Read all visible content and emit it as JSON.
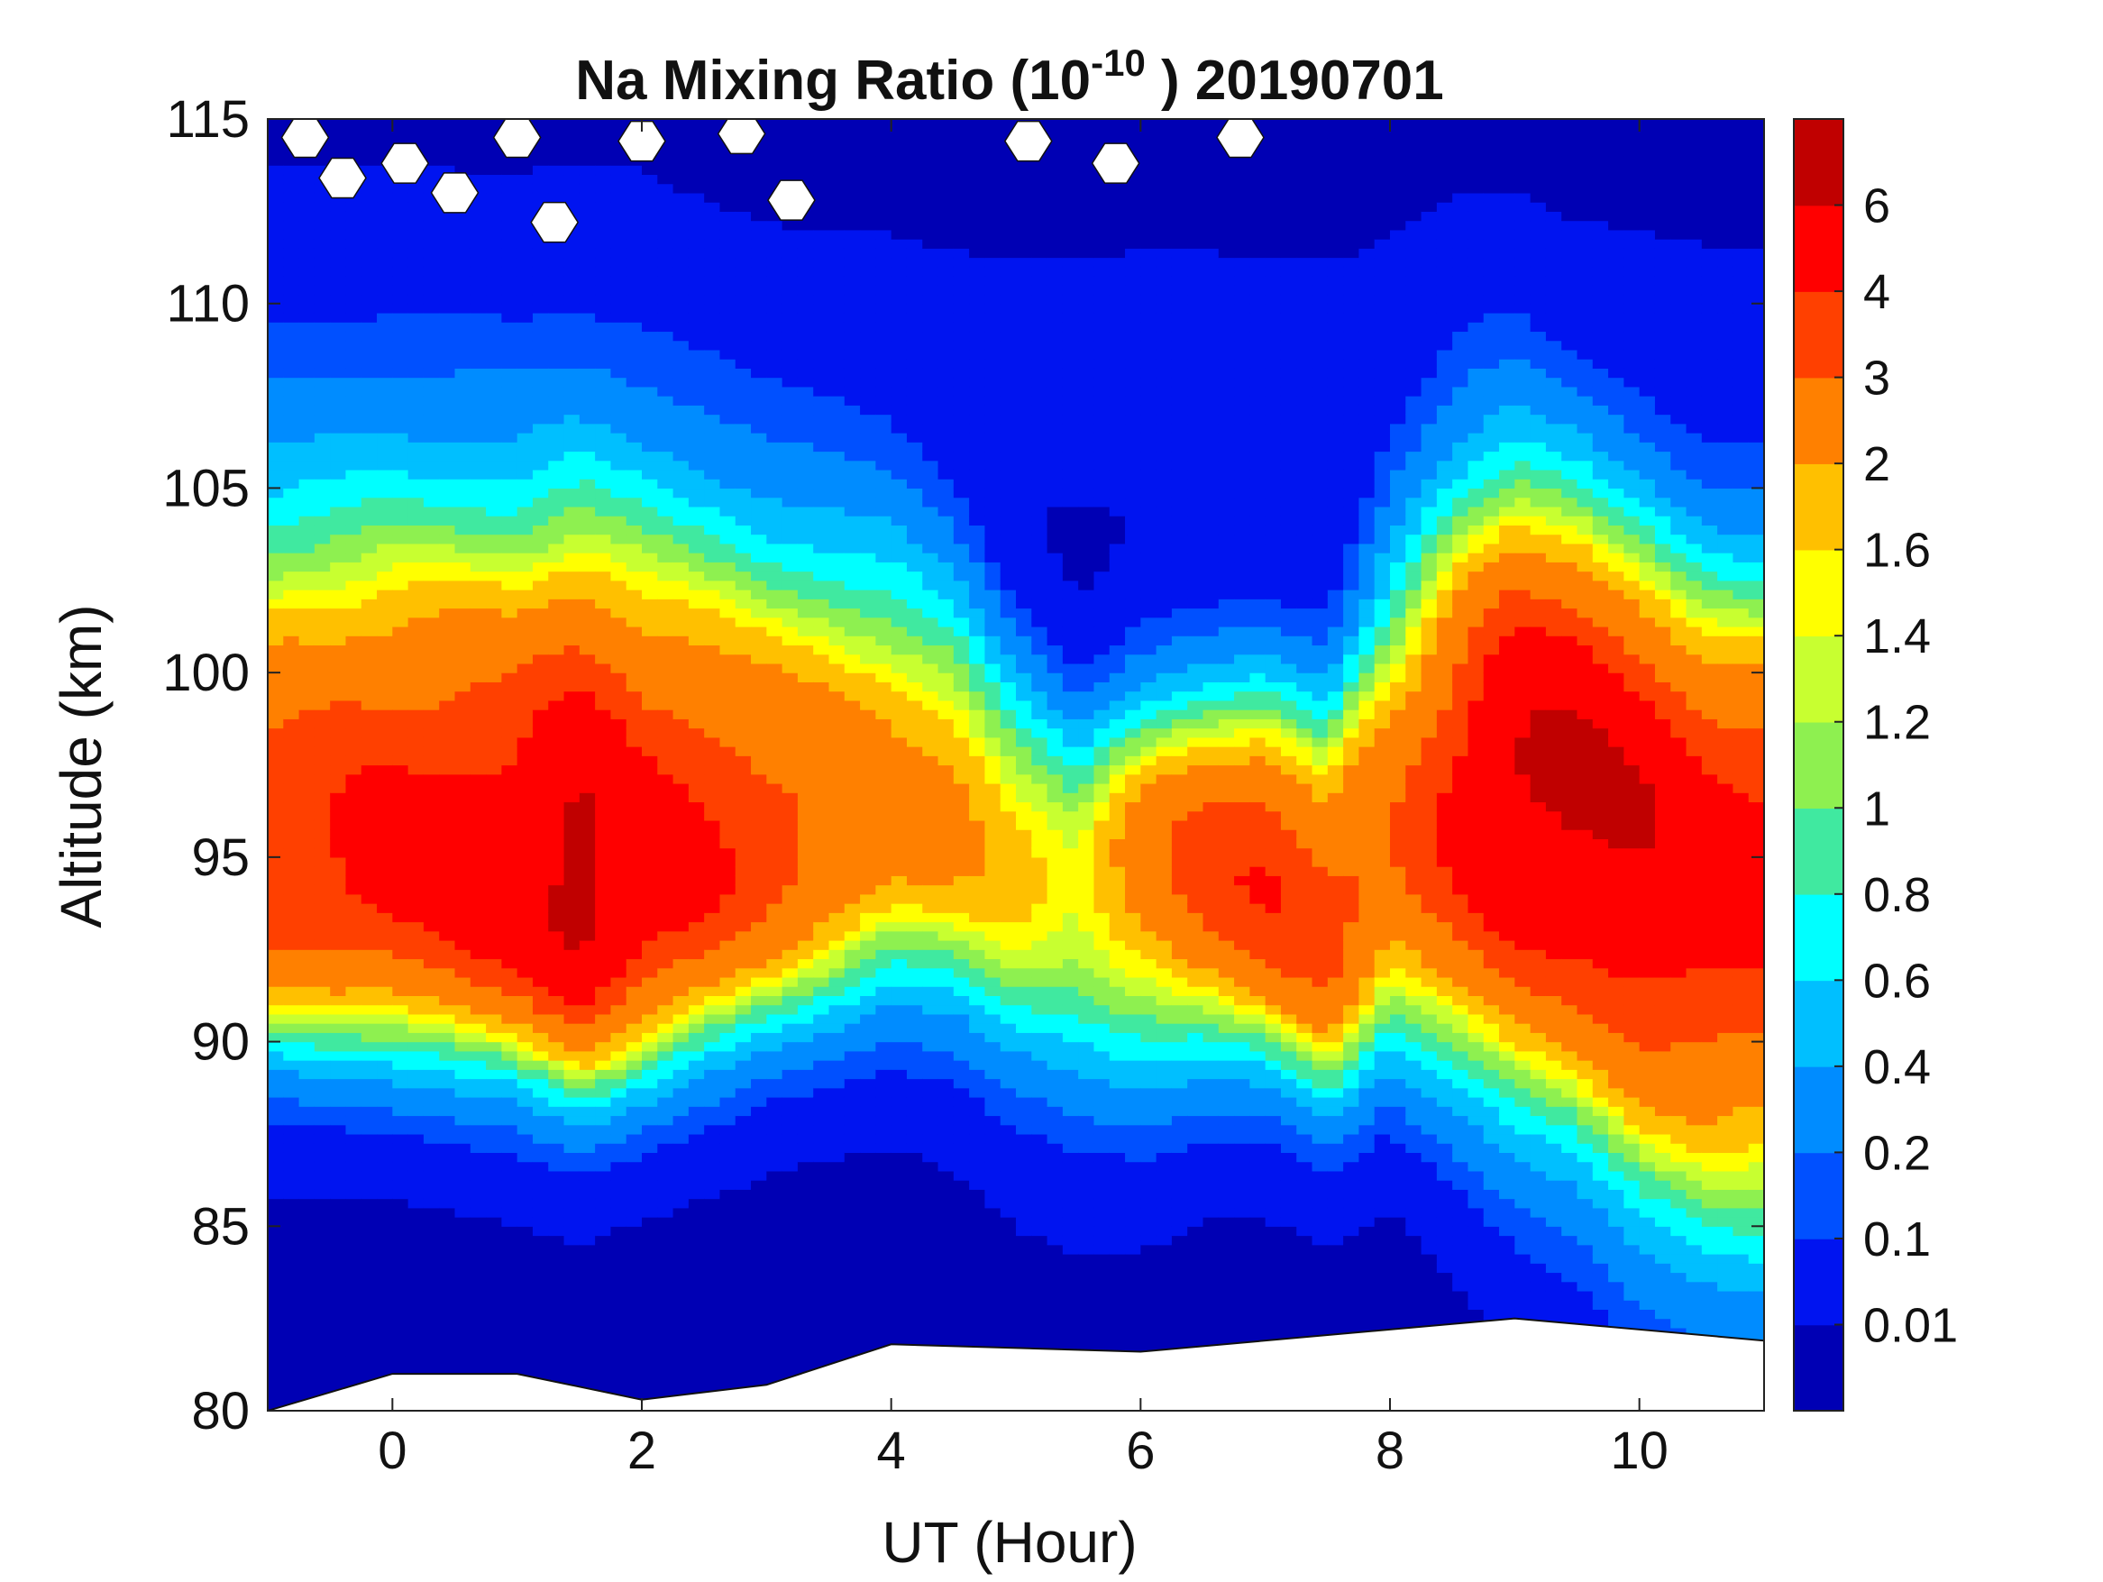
{
  "chart_data": {
    "type": "heatmap",
    "subtype": "filled-contour",
    "title": {
      "main": "Na Mixing Ratio (10",
      "exponent": "-10",
      "suffix": " ) 20190701"
    },
    "xlabel": "UT (Hour)",
    "ylabel": "Altitude (km)",
    "xlim": [
      -1,
      11
    ],
    "ylim": [
      80,
      115
    ],
    "xticks": [
      "0",
      "2",
      "4",
      "6",
      "8",
      "10"
    ],
    "yticks": [
      "80",
      "85",
      "90",
      "95",
      "100",
      "105",
      "110",
      "115"
    ],
    "colorbar": {
      "levels": [
        0,
        0.01,
        0.1,
        0.2,
        0.4,
        0.6,
        0.8,
        1,
        1.2,
        1.4,
        1.6,
        2,
        3,
        4,
        6,
        7
      ],
      "tick_labels": [
        "0.01",
        "0.1",
        "0.2",
        "0.4",
        "0.6",
        "0.8",
        "1",
        "1.2",
        "1.4",
        "1.6",
        "2",
        "3",
        "4",
        "6"
      ],
      "colors": [
        "#0000b4",
        "#0014f0",
        "#0050ff",
        "#008cff",
        "#00bfff",
        "#00ffff",
        "#40e9a0",
        "#8ef050",
        "#c8ff30",
        "#ffff00",
        "#ffc000",
        "#ff8000",
        "#ff4000",
        "#ff0000",
        "#c00000"
      ]
    },
    "profile_hours": [
      -1,
      0,
      1,
      1.5,
      2,
      3,
      4,
      4.5,
      5,
      5.5,
      6,
      6.5,
      7,
      7.5,
      8,
      8.5,
      9,
      9.5,
      10,
      10.5,
      11
    ],
    "layer_peak_altitude_km": [
      94.5,
      94.5,
      94,
      93.8,
      94,
      95,
      96,
      96,
      95,
      94.5,
      95,
      95,
      94.5,
      93,
      95,
      96,
      97,
      97,
      96,
      95,
      95
    ],
    "layer_peak_value": [
      3.8,
      4.5,
      5.2,
      7,
      5,
      3.5,
      2.4,
      2.2,
      1.8,
      1.5,
      2.4,
      3.5,
      4.1,
      3.5,
      2.8,
      4.2,
      6.3,
      6.5,
      6,
      5,
      4.5
    ],
    "layer_half_width_below_km": [
      3.5,
      3.5,
      3.5,
      3.6,
      3.5,
      3.5,
      3.7,
      4,
      4.3,
      4.5,
      4.5,
      4,
      3.7,
      3.5,
      4,
      5,
      6,
      6.5,
      7,
      7.2,
      7.5
    ],
    "layer_half_width_above_km": [
      7.5,
      7.5,
      7.5,
      7.5,
      7.5,
      6.5,
      5.8,
      5,
      4,
      3.3,
      3.5,
      3.5,
      3.8,
      4.5,
      6,
      6.5,
      6,
      5.5,
      5.5,
      5.5,
      5.5
    ],
    "missing_data": {
      "bottom_boundary_km": {
        "hours": [
          -1,
          0,
          1,
          2,
          3,
          4,
          6,
          8,
          9,
          11
        ],
        "alt": [
          80,
          81,
          81,
          80.3,
          80.7,
          81.8,
          81.6,
          82.2,
          82.5,
          81.9
        ]
      },
      "top_gaps": [
        [
          -0.7,
          114.5
        ],
        [
          -0.4,
          113.4
        ],
        [
          0.1,
          113.8
        ],
        [
          0.5,
          113
        ],
        [
          1,
          114.5
        ],
        [
          1.3,
          112.2
        ],
        [
          2,
          114.4
        ],
        [
          2.8,
          114.6
        ],
        [
          3.2,
          112.8
        ],
        [
          5.1,
          114.4
        ],
        [
          5.8,
          113.8
        ],
        [
          6.8,
          114.5
        ]
      ]
    }
  }
}
